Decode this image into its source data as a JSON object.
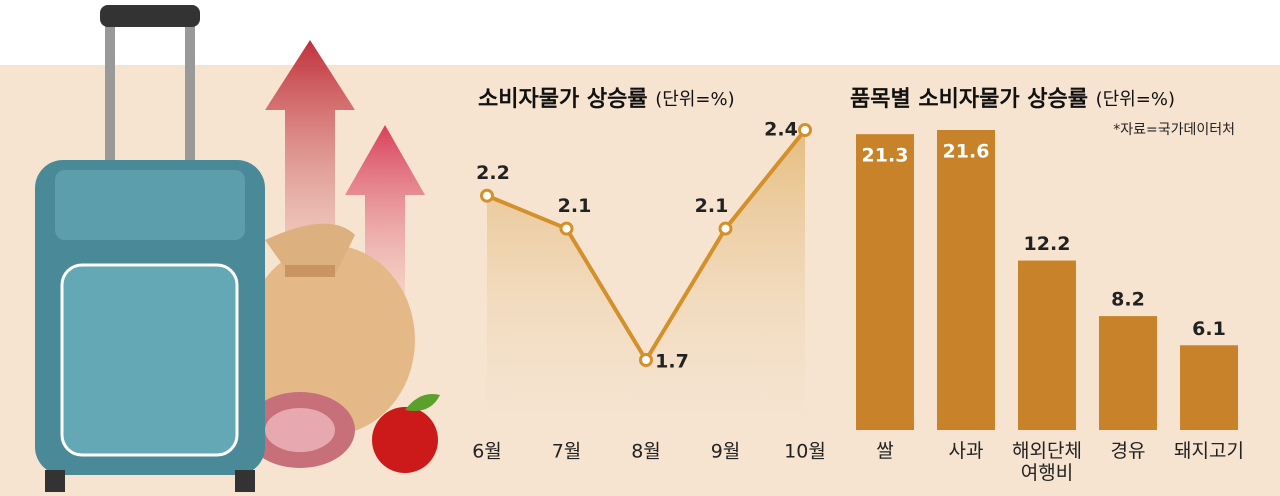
{
  "chart_data": [
    {
      "type": "line",
      "title": "소비자물가 상승률",
      "subtitle": "(단위=%)",
      "categories": [
        "6월",
        "7월",
        "8월",
        "9월",
        "10월"
      ],
      "values": [
        2.2,
        2.1,
        1.7,
        2.1,
        2.4
      ],
      "color": "#d4902a"
    },
    {
      "type": "bar",
      "title": "품목별 소비자물가 상승률",
      "subtitle": "(단위=%)",
      "note": "*자료=국가데이터처",
      "categories": [
        "쌀",
        "사과",
        "해외단체 여행비",
        "경유",
        "돼지고기"
      ],
      "values": [
        21.3,
        21.6,
        12.2,
        8.2,
        6.1
      ],
      "color": "#c8832a"
    }
  ]
}
